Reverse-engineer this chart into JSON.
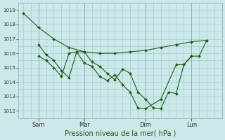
{
  "background_color": "#cce8e8",
  "grid_color": "#aacccc",
  "line_color": "#1a5c1a",
  "marker_color": "#1a5c1a",
  "xlabel": "Pression niveau de la mer( hPa )",
  "ylim": [
    1011.5,
    1019.5
  ],
  "yticks": [
    1012,
    1013,
    1014,
    1015,
    1016,
    1017,
    1018,
    1019
  ],
  "xtick_labels": [
    "Sam",
    "Mar",
    "Dim",
    "Lun"
  ],
  "xtick_positions": [
    1,
    4,
    8,
    11
  ],
  "vline_positions": [
    1,
    4,
    8,
    11
  ],
  "series1": {
    "x": [
      0,
      1,
      2,
      3,
      4,
      5,
      6,
      7,
      8,
      9,
      10,
      11,
      12
    ],
    "y": [
      1018.8,
      1017.8,
      1017.0,
      1016.4,
      1016.1,
      1016.0,
      1016.0,
      1016.1,
      1016.2,
      1016.4,
      1016.6,
      1016.8,
      1016.9
    ]
  },
  "series2": {
    "x": [
      1,
      1.5,
      2,
      2.5,
      3,
      3.5,
      4,
      4.5,
      5,
      5.5,
      6,
      6.5,
      7,
      7.5,
      8,
      8.5,
      9,
      9.5,
      10,
      10.5,
      11,
      11.5,
      12
    ],
    "y": [
      1016.6,
      1015.9,
      1015.5,
      1014.8,
      1014.3,
      1016.1,
      1016.1,
      1015.4,
      1015.1,
      1014.6,
      1014.15,
      1014.9,
      1014.6,
      1013.3,
      1012.8,
      1012.2,
      1012.15,
      1013.3,
      1013.2,
      1015.2,
      1015.8,
      1015.8,
      1016.9
    ]
  },
  "series3": {
    "x": [
      1,
      1.5,
      2,
      2.5,
      3,
      3.5,
      4,
      4.5,
      5,
      5.5,
      6,
      6.5,
      7,
      7.5,
      8,
      9,
      10,
      10.5,
      11
    ],
    "y": [
      1015.8,
      1015.5,
      1015.0,
      1014.4,
      1016.0,
      1016.1,
      1015.3,
      1015.1,
      1014.4,
      1014.1,
      1014.5,
      1013.8,
      1013.3,
      1012.2,
      1012.15,
      1012.8,
      1015.2,
      1015.2,
      1015.8
    ]
  }
}
